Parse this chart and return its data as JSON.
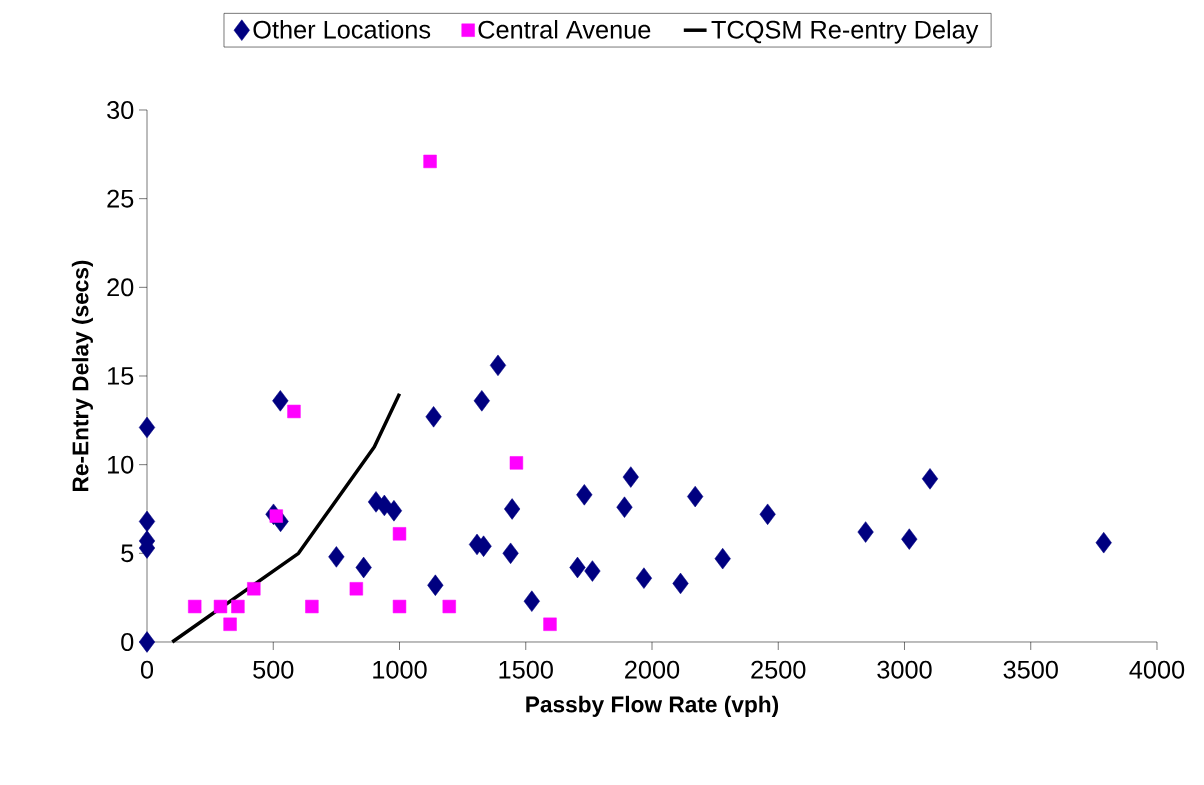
{
  "chart_data": {
    "type": "scatter",
    "xlabel": "Passby Flow Rate (vph)",
    "ylabel": "Re-Entry Delay (secs)",
    "xlim": [
      0,
      4000
    ],
    "ylim": [
      0,
      30
    ],
    "xticks": [
      0,
      500,
      1000,
      1500,
      2000,
      2500,
      3000,
      3500,
      4000
    ],
    "yticks": [
      0,
      5,
      10,
      15,
      20,
      25,
      30
    ],
    "grid": false,
    "legend": "top",
    "series": [
      {
        "name": "Other Locations",
        "color": "#000080",
        "marker": "diamond",
        "x": [
          0,
          0,
          0,
          0,
          0,
          528,
          501,
          529,
          750,
          858,
          907,
          940,
          978,
          1135,
          1142,
          1307,
          1333,
          1326,
          1390,
          1446,
          1440,
          1524,
          1705,
          1732,
          1764,
          1891,
          1916,
          1968,
          2113,
          2171,
          2280,
          2458,
          2846,
          3019,
          3101,
          3789
        ],
        "values": [
          12.1,
          6.8,
          5.7,
          5.3,
          0,
          13.6,
          7.2,
          6.8,
          4.8,
          4.2,
          7.9,
          7.7,
          7.4,
          12.7,
          3.2,
          5.5,
          5.4,
          13.6,
          15.6,
          7.5,
          5.0,
          2.3,
          4.2,
          8.3,
          4.0,
          7.6,
          9.3,
          3.6,
          3.3,
          8.2,
          4.7,
          7.2,
          6.2,
          5.8,
          9.2,
          5.6
        ]
      },
      {
        "name": "Central Avenue",
        "color": "#ff00ff",
        "marker": "square",
        "x": [
          1121,
          582,
          1463,
          512,
          1000,
          423,
          829,
          189,
          291,
          360,
          653,
          1000,
          1197,
          329,
          1596
        ],
        "values": [
          27.1,
          13.0,
          10.1,
          7.1,
          6.1,
          3.0,
          3.0,
          2.0,
          2.0,
          2.0,
          2.0,
          2.0,
          2.0,
          1.0,
          1.0
        ]
      },
      {
        "name": "TCQSM Re-entry Delay",
        "type": "line",
        "color": "#000000",
        "marker": "none",
        "line_style": "solid",
        "x": [
          100,
          600,
          700,
          900,
          1000
        ],
        "values": [
          0,
          5,
          7,
          11,
          14
        ]
      }
    ]
  }
}
